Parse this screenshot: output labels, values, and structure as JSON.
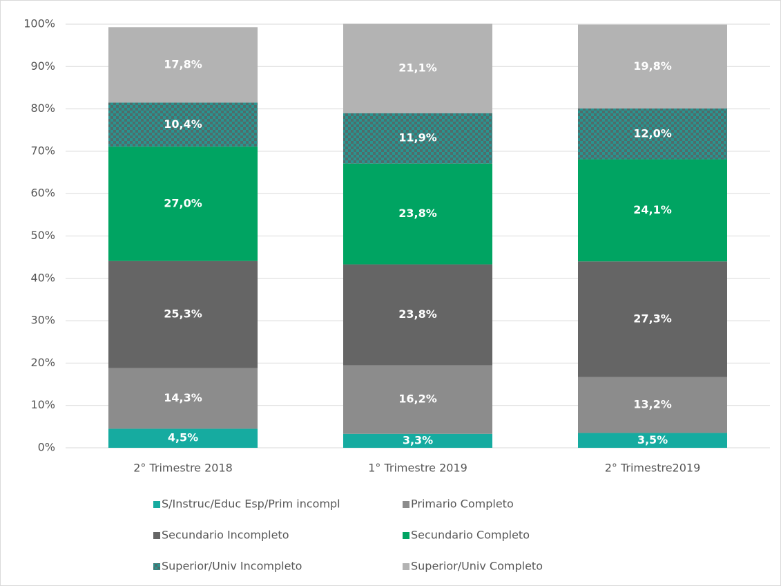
{
  "chart_data": {
    "type": "stacked_bar",
    "categories": [
      "2° Trimestre 2018",
      "1° Trimestre 2019",
      "2° Trimestre2019"
    ],
    "series": [
      {
        "name": "S/Instruc/Educ Esp/Prim incompl",
        "color": "#16aba0",
        "values": [
          4.5,
          3.3,
          3.5
        ],
        "value_labels": [
          "4,5%",
          "3,3%",
          "3,5%"
        ]
      },
      {
        "name": "Primario Completo",
        "color": "#8c8c8c",
        "values": [
          14.3,
          16.2,
          13.2
        ],
        "value_labels": [
          "14,3%",
          "16,2%",
          "13,2%"
        ]
      },
      {
        "name": "Secundario Incompleto",
        "color": "#656565",
        "values": [
          25.3,
          23.8,
          27.3
        ],
        "value_labels": [
          "25,3%",
          "23,8%",
          "27,3%"
        ]
      },
      {
        "name": "Secundario Completo",
        "color": "#00a462",
        "values": [
          27.0,
          23.8,
          24.1
        ],
        "value_labels": [
          "27,0%",
          "23,8%",
          "24,1%"
        ]
      },
      {
        "name": "Superior/Univ Incompleto",
        "color": "#2a9490",
        "pattern": "checker",
        "values": [
          10.4,
          11.9,
          12.0
        ],
        "value_labels": [
          "10,4%",
          "11,9%",
          "12,0%"
        ]
      },
      {
        "name": "Superior/Univ Completo",
        "color": "#b3b3b3",
        "values": [
          17.8,
          21.1,
          19.8
        ],
        "value_labels": [
          "17,8%",
          "21,1%",
          "19,8%"
        ]
      }
    ],
    "ylim": [
      0,
      100
    ],
    "yticks": [
      {
        "value": 0,
        "label": "0%"
      },
      {
        "value": 10,
        "label": "10%"
      },
      {
        "value": 20,
        "label": "20%"
      },
      {
        "value": 30,
        "label": "30%"
      },
      {
        "value": 40,
        "label": "40%"
      },
      {
        "value": 50,
        "label": "50%"
      },
      {
        "value": 60,
        "label": "60%"
      },
      {
        "value": 70,
        "label": "70%"
      },
      {
        "value": 80,
        "label": "80%"
      },
      {
        "value": 90,
        "label": "90%"
      },
      {
        "value": 100,
        "label": "100%"
      }
    ],
    "grid": true,
    "legend": "bottom"
  }
}
